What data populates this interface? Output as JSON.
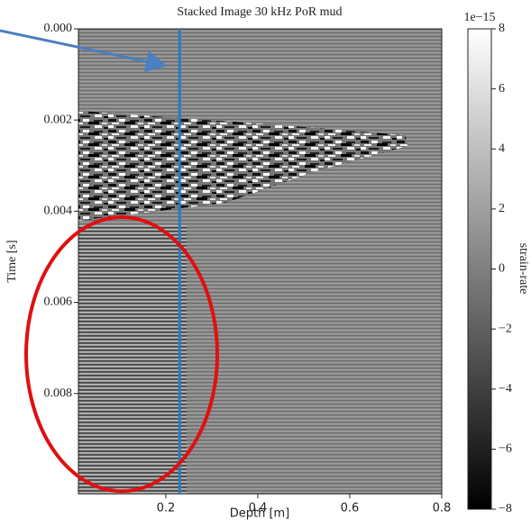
{
  "chart_data": {
    "type": "image",
    "title": "Stacked Image 30 kHz PoR mud",
    "xlabel": "Depth [m]",
    "ylabel": "Time [s]",
    "xlim": [
      0.01,
      0.8
    ],
    "xticks": [
      0.2,
      0.4,
      0.6,
      0.8
    ],
    "ylim": [
      0,
      0.0102
    ],
    "yinvert": true,
    "yticks": [
      {
        "value": 0,
        "label": "0.000"
      },
      {
        "value": 0.002,
        "label": "0.002"
      },
      {
        "value": 0.004,
        "label": "0.004"
      },
      {
        "value": 0.006,
        "label": "0.006"
      },
      {
        "value": 0.008,
        "label": "0.008"
      }
    ],
    "cmap": "gray",
    "colorbar": {
      "label": "strain-rate",
      "offset_label": "1e−15",
      "lim": [
        -8,
        8
      ],
      "ticks": [
        {
          "value": -8,
          "label": "−8"
        },
        {
          "value": -6,
          "label": "−6"
        },
        {
          "value": -4,
          "label": "−4"
        },
        {
          "value": -2,
          "label": "−2"
        },
        0,
        2,
        4,
        6,
        8
      ]
    },
    "vline": {
      "x": 0.23,
      "color": "#2b7bb9"
    }
  }
}
